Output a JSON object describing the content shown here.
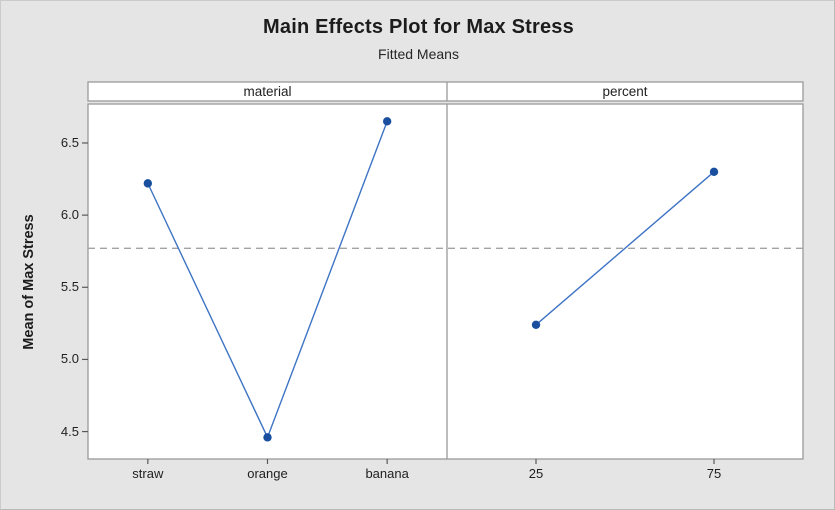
{
  "chart_data": {
    "type": "line",
    "title": "Main Effects Plot for Max Stress",
    "subtitle": "Fitted Means",
    "ylabel": "Mean of Max Stress",
    "panels": [
      {
        "label": "material",
        "categories": [
          "straw",
          "orange",
          "banana"
        ],
        "values": [
          6.22,
          4.46,
          6.65
        ]
      },
      {
        "label": "percent",
        "categories": [
          "25",
          "75"
        ],
        "values": [
          5.24,
          6.3
        ]
      }
    ],
    "yticks": [
      6.5,
      6.0,
      5.5,
      5.0,
      4.5
    ],
    "ylim": [
      4.31,
      6.77
    ],
    "reference_line": 5.77,
    "grid": false,
    "legend": "none",
    "colors": {
      "marker": "#1a4f9f",
      "line": "#3e74c4",
      "frame": "#999999",
      "reference": "#a3a3a3",
      "tick": "#595959",
      "plot_bg": "#ffffff",
      "page_bg": "#e5e5e5"
    }
  }
}
